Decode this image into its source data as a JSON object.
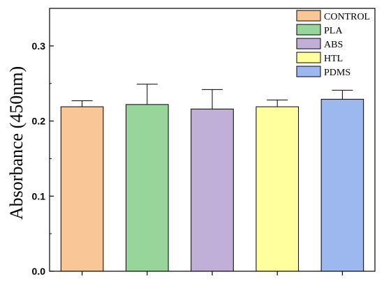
{
  "chart_data": {
    "type": "bar",
    "categories": [
      "CONTROL",
      "PLA",
      "ABS",
      "HTL",
      "PDMS"
    ],
    "values": [
      0.219,
      0.222,
      0.216,
      0.219,
      0.229
    ],
    "errors": [
      0.008,
      0.027,
      0.026,
      0.009,
      0.012
    ],
    "colors": [
      "#F8C697",
      "#98D59B",
      "#C0AFD6",
      "#FFFF9E",
      "#9CB8EE"
    ],
    "title": "",
    "xlabel": "",
    "ylabel": "Absorbance (450nm)",
    "ylim": [
      0,
      0.35
    ],
    "yticks": [
      0.0,
      0.1,
      0.2,
      0.3
    ],
    "ytick_labels": [
      "0.0",
      "0.1",
      "0.2",
      "0.3"
    ],
    "legend": {
      "placement": "top-right",
      "entries": [
        "CONTROL",
        "PLA",
        "ABS",
        "HTL",
        "PDMS"
      ]
    },
    "grid": false
  }
}
